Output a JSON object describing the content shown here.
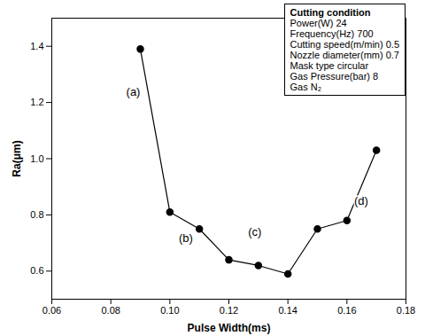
{
  "chart_data": {
    "type": "line",
    "x_label": "Pulse Width(ms)",
    "y_label": "Ra(μm)",
    "x": [
      0.09,
      0.1,
      0.11,
      0.12,
      0.13,
      0.14,
      0.15,
      0.16,
      0.17
    ],
    "values": [
      1.39,
      0.81,
      0.75,
      0.64,
      0.62,
      0.59,
      0.75,
      0.78,
      1.03
    ],
    "point_labels": [
      "(a)",
      "(b)",
      null,
      null,
      "(c)",
      null,
      null,
      "(d)",
      null
    ],
    "color": "#000000",
    "marker": "circle",
    "xlim": [
      0.06,
      0.18
    ],
    "xticks": [
      0.06,
      0.08,
      {
        "value": 0.1,
        "label": "0.10"
      },
      0.12,
      0.14,
      0.16,
      0.18
    ],
    "ylim": [
      0.5,
      1.5
    ],
    "yticks": [
      0.6,
      0.8,
      {
        "value": 1.0,
        "label": "1.0"
      },
      1.2,
      1.4
    ],
    "text_box": {
      "title": "Cutting condition",
      "lines": [
        "Power(W) 24",
        "Frequency(Hz) 700",
        "Cutting speed(m/min) 0.5",
        "Nozzle diameter(mm) 0.7",
        "Mask type circular",
        "Gas Pressure(bar) 8",
        "Gas N₂"
      ]
    }
  }
}
